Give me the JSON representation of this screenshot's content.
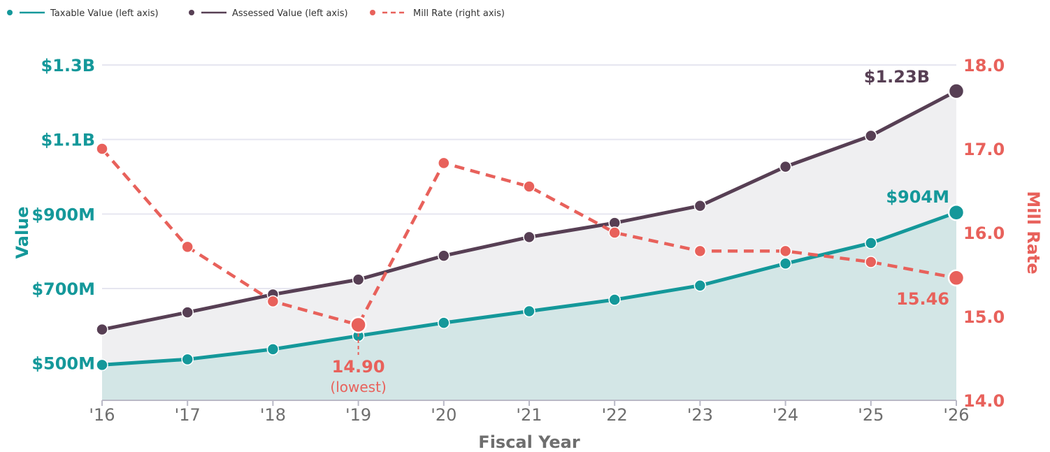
{
  "colors": {
    "taxable": "#14989a",
    "assessed": "#573f54",
    "mill": "#e8615b",
    "grid": "#e6e6f0",
    "axis_title_x": "#6e6e6e",
    "area_taxable": "#d3e6e6",
    "area_assessed": "#efeff1"
  },
  "legend": [
    {
      "label": "Taxable Value (left axis)",
      "color": "#14989a",
      "style": "solid"
    },
    {
      "label": "Assessed Value (left axis)",
      "color": "#573f54",
      "style": "solid"
    },
    {
      "label": "Mill Rate (right axis)",
      "color": "#e8615b",
      "style": "dashed"
    }
  ],
  "chart_data": {
    "type": "line",
    "xlabel": "Fiscal Year",
    "ylabel_left": "Value",
    "ylabel_right": "Mill Rate",
    "categories": [
      "'16",
      "'17",
      "'18",
      "'19",
      "'20",
      "'21",
      "'22",
      "'23",
      "'24",
      "'25",
      "'26"
    ],
    "left_axis": {
      "min": 400,
      "max": 1300,
      "unit": "millions",
      "ticks": [
        {
          "value": 500,
          "label": "$500M"
        },
        {
          "value": 700,
          "label": "$700M"
        },
        {
          "value": 900,
          "label": "$900M"
        },
        {
          "value": 1100,
          "label": "$1.1B"
        },
        {
          "value": 1300,
          "label": "$1.3B"
        }
      ]
    },
    "right_axis": {
      "min": 14.0,
      "max": 18.0,
      "ticks": [
        {
          "value": 14.0,
          "label": "14.0"
        },
        {
          "value": 15.0,
          "label": "15.0"
        },
        {
          "value": 16.0,
          "label": "16.0"
        },
        {
          "value": 17.0,
          "label": "17.0"
        },
        {
          "value": 18.0,
          "label": "18.0"
        }
      ]
    },
    "series": [
      {
        "name": "Taxable Value (left axis)",
        "axis": "left",
        "values": [
          495,
          510,
          537,
          573,
          608,
          639,
          670,
          708,
          767,
          822,
          904
        ]
      },
      {
        "name": "Assessed Value (left axis)",
        "axis": "left",
        "values": [
          590,
          636,
          684,
          724,
          788,
          838,
          876,
          922,
          1027,
          1110,
          1230
        ]
      },
      {
        "name": "Mill Rate (right axis)",
        "axis": "right",
        "values": [
          17.0,
          15.83,
          15.18,
          14.9,
          16.83,
          16.55,
          16.0,
          15.78,
          15.78,
          15.65,
          15.46
        ]
      }
    ],
    "annotations": {
      "assessed_last": "$1.23B",
      "taxable_last": "$904M",
      "mill_last": "15.46",
      "mill_low": "14.90",
      "mill_low_note": "(lowest)"
    },
    "grid": true,
    "legend_position": "top-left"
  }
}
